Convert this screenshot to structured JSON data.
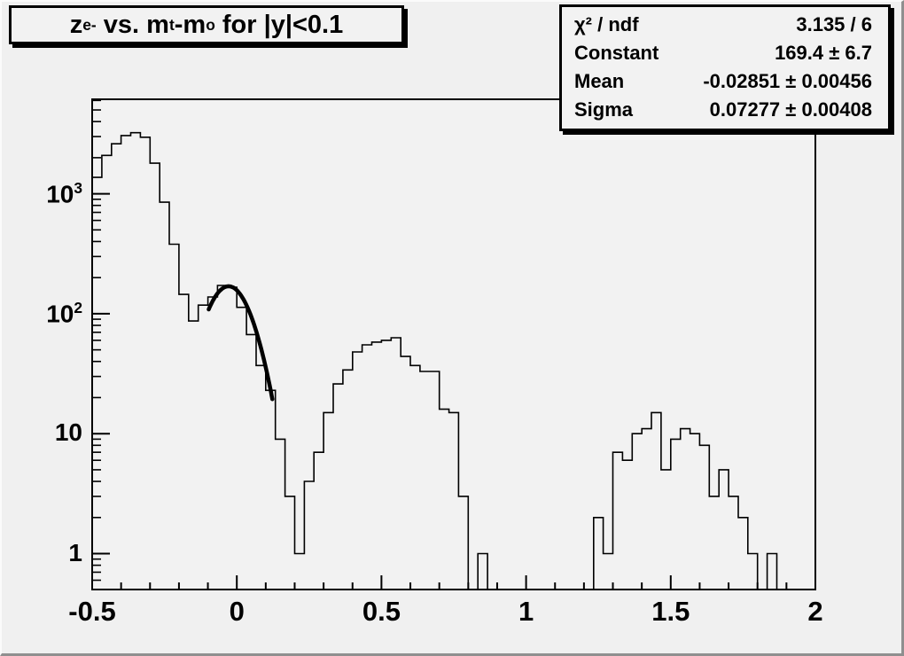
{
  "canvas": {
    "background": "#f0f0f0",
    "frame_fill": "#f2f2f2",
    "line_color": "#000000",
    "bevel_light": "#fbfbfb",
    "bevel_dark": "#8f8f8f"
  },
  "title_box": {
    "parts": [
      {
        "text": "z"
      },
      {
        "sub": "e-"
      },
      {
        "text": " vs. m"
      },
      {
        "sub": "t"
      },
      {
        "text": "-m"
      },
      {
        "sub": "o"
      },
      {
        "text": " for |y|<0.1"
      }
    ],
    "plain": "z_e- vs. m_t-m_o for |y|<0.1"
  },
  "stats_box": {
    "rows": [
      {
        "label": "χ² / ndf",
        "value": "3.135 / 6"
      },
      {
        "label": "Constant",
        "value": "169.4 ± 6.7"
      },
      {
        "label": "Mean",
        "value": "-0.02851 ± 0.00456"
      },
      {
        "label": "Sigma",
        "value": "0.07277 ± 0.00408"
      }
    ]
  },
  "chart_data": {
    "type": "bar",
    "subtype": "step-histogram",
    "title": "z_e- vs. m_t-m_o for |y|<0.1",
    "xlabel": "",
    "ylabel": "",
    "grid": false,
    "legend": "none",
    "x_axis": {
      "min": -0.5,
      "max": 2.0,
      "major_ticks": [
        -0.5,
        0,
        0.5,
        1,
        1.5,
        2
      ],
      "tick_labels": [
        "-0.5",
        "0",
        "0.5",
        "1",
        "1.5",
        "2"
      ],
      "minor_step": 0.1
    },
    "y_axis": {
      "scale": "log",
      "min": 0.5,
      "max": 6000,
      "decades": [
        1,
        10,
        100,
        1000
      ],
      "decade_labels": [
        "1",
        "10",
        "10^2",
        "10^3"
      ]
    },
    "histogram": {
      "bin_start": -0.5,
      "bin_width": 0.0333333,
      "values": [
        1370,
        2090,
        2610,
        3060,
        3230,
        2960,
        1800,
        850,
        380,
        145,
        87,
        118,
        138,
        172,
        166,
        113,
        67,
        37,
        23,
        9,
        3,
        1,
        4,
        7,
        15,
        26,
        34,
        48,
        55,
        58,
        60,
        63,
        44,
        37,
        33,
        33,
        16,
        15,
        3,
        0,
        1,
        0,
        0,
        0,
        0,
        0,
        0,
        0,
        0,
        0,
        0,
        0,
        2,
        1,
        7,
        6,
        10,
        11,
        15,
        5,
        9,
        11,
        10,
        8,
        3,
        5,
        3,
        2,
        1,
        0,
        1,
        0,
        0,
        0,
        0
      ]
    },
    "fit": {
      "shape": "gaussian",
      "constant": 169.4,
      "mean": -0.02851,
      "sigma": 0.07277,
      "chi2": 3.135,
      "ndf": 6,
      "x_range": [
        -0.097,
        0.123
      ]
    }
  }
}
